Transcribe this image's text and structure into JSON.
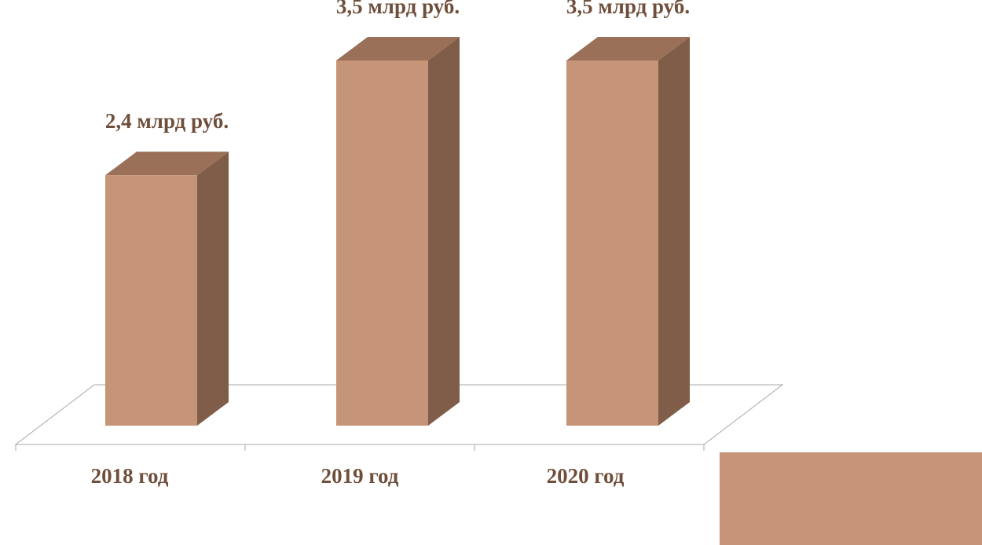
{
  "chart_data": {
    "type": "bar",
    "categories": [
      "2018 год",
      "2019 год",
      "2020 год"
    ],
    "values": [
      2.4,
      3.5,
      3.5
    ],
    "data_labels": [
      "2,4 млрд руб.",
      "3,5 млрд руб.",
      "3,5 млрд руб."
    ],
    "title": "",
    "xlabel": "",
    "ylabel": "",
    "ylim": [
      0,
      3.5
    ],
    "grid": false,
    "legend": "none",
    "style": "3d-column"
  },
  "colors": {
    "bar_front": "#c69478",
    "bar_top": "#9b7058",
    "bar_side": "#7f5d48",
    "label_text": "#6f4f3b",
    "floor_line": "#a8a8a8",
    "corner_block": "#c69478"
  }
}
